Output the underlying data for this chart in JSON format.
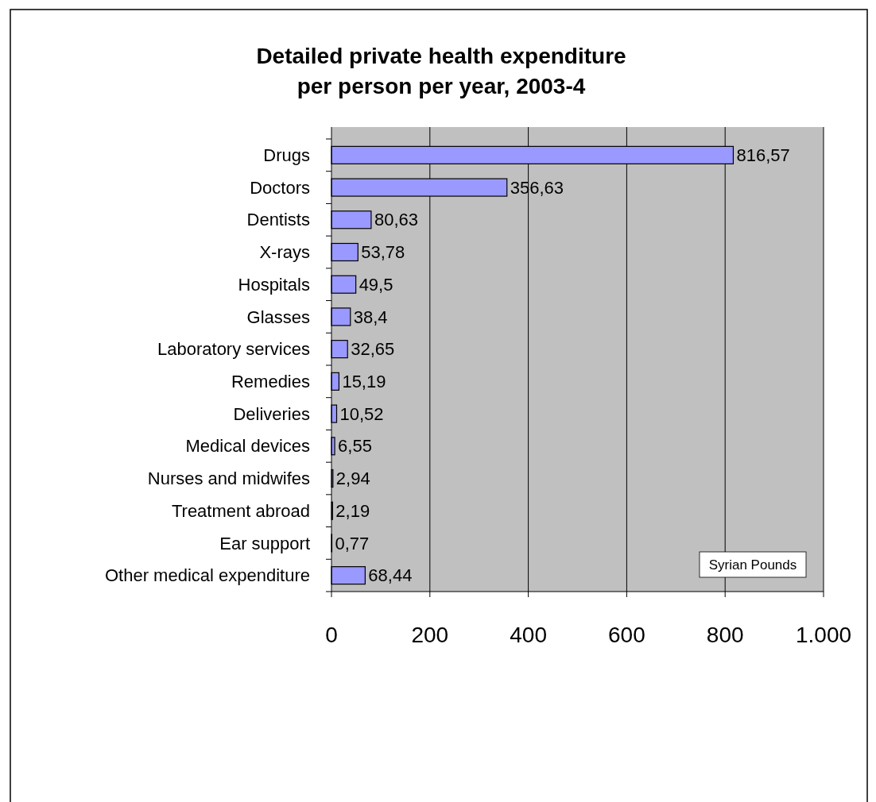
{
  "chart_data": {
    "type": "bar",
    "orientation": "horizontal",
    "title": "Detailed private health expenditure\nper person per year, 2003-4",
    "categories": [
      "Drugs",
      "Doctors",
      "Dentists",
      "X-rays",
      "Hospitals",
      "Glasses",
      "Laboratory services",
      "Remedies",
      "Deliveries",
      "Medical devices",
      "Nurses and midwifes",
      "Treatment abroad",
      "Ear support",
      "Other medical expenditure"
    ],
    "values": [
      816.57,
      356.63,
      80.63,
      53.78,
      49.5,
      38.4,
      32.65,
      15.19,
      10.52,
      6.55,
      2.94,
      2.19,
      0.77,
      68.44
    ],
    "value_labels": [
      "816,57",
      "356,63",
      "80,63",
      "53,78",
      "49,5",
      "38,4",
      "32,65",
      "15,19",
      "10,52",
      "6,55",
      "2,94",
      "2,19",
      "0,77",
      "68,44"
    ],
    "color": "#9999ff",
    "xlim": [
      0,
      1000
    ],
    "xticks": [
      0,
      200,
      400,
      600,
      800,
      {
        "value": 1000,
        "label": "1.000"
      }
    ],
    "grid": "x",
    "annotations": [
      "Syrian Pounds"
    ]
  }
}
